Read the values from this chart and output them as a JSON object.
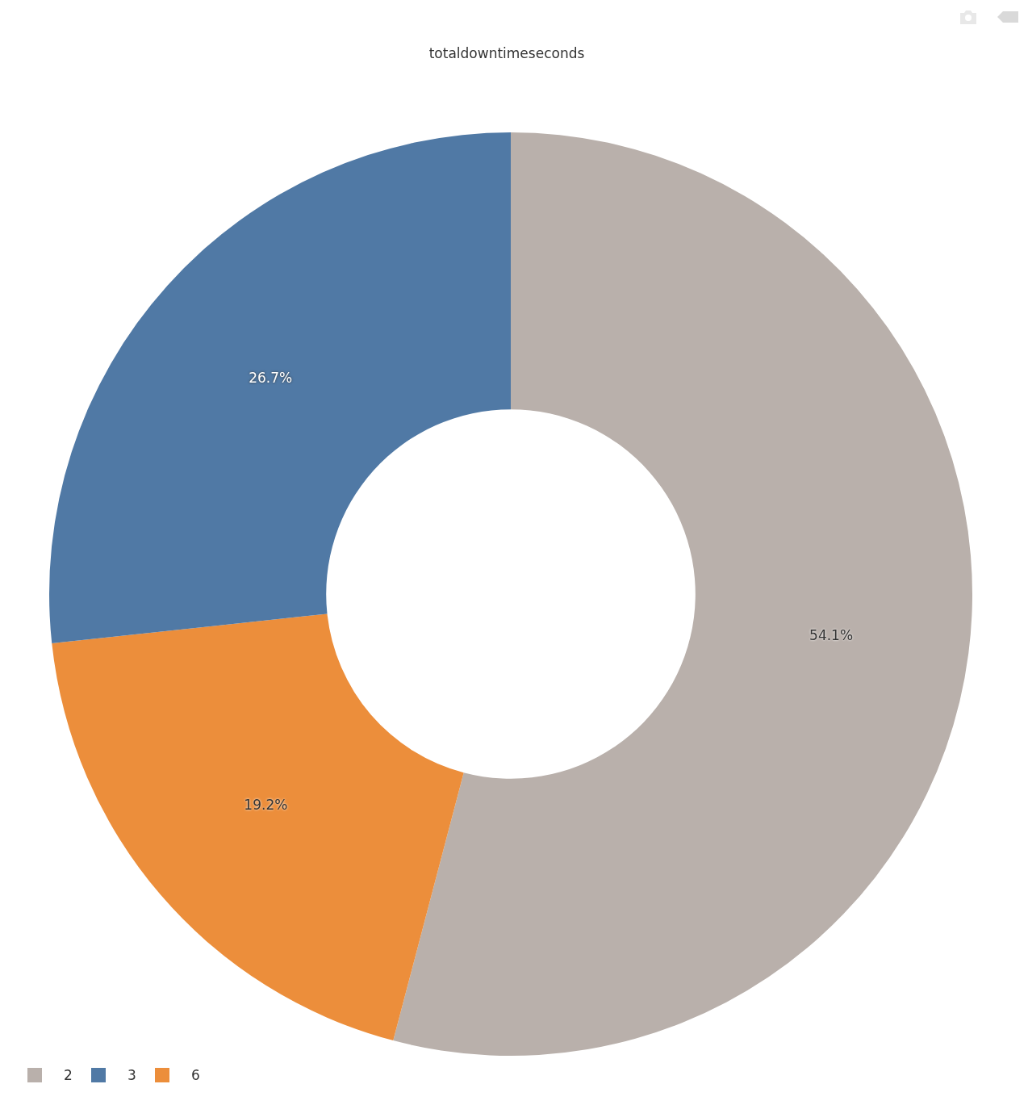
{
  "chart_data": {
    "type": "donut",
    "title": "totaldowntimeseconds",
    "categories": [
      "2",
      "3",
      "6"
    ],
    "values": [
      54.1,
      26.7,
      19.2
    ],
    "colors": [
      "#b9b0ab",
      "#5079a5",
      "#ec8e3b"
    ],
    "value_labels": [
      "54.1%",
      "26.7%",
      "19.2%"
    ],
    "legend": "bottom left"
  }
}
